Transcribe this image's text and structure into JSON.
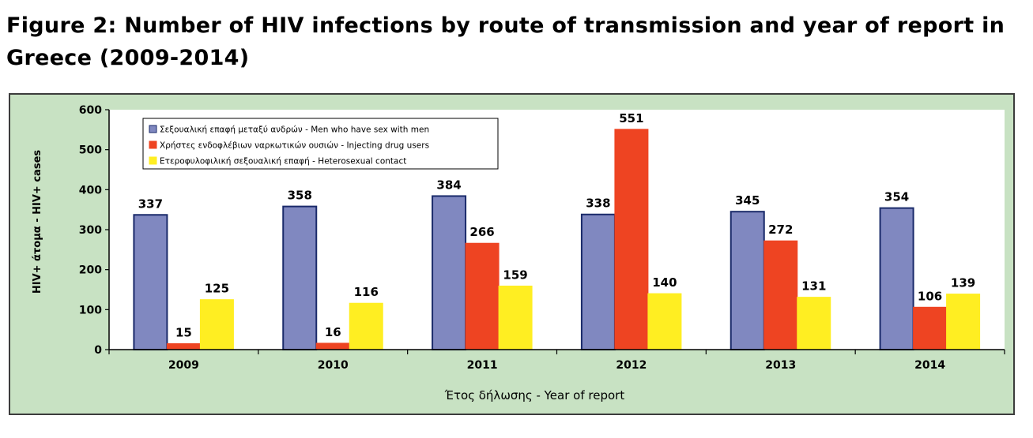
{
  "figure": {
    "title": "Figure 2: Number of HIV infections by route of transmission and year of report in Greece (2009-2014)"
  },
  "chart_data": {
    "type": "bar",
    "categories": [
      "2009",
      "2010",
      "2011",
      "2012",
      "2013",
      "2014"
    ],
    "series": [
      {
        "name": "Σεξουαλική επαφή μεταξύ ανδρών - Men who have sex with men",
        "color": "#8088c0",
        "border": "#1a2a6a",
        "values": [
          337,
          358,
          384,
          338,
          345,
          354
        ]
      },
      {
        "name": "Χρήστες ενδοφλέβιων ναρκωτικών ουσιών - Injecting drug users",
        "color": "#ee4422",
        "border": "#ee4422",
        "values": [
          15,
          16,
          266,
          551,
          272,
          106
        ]
      },
      {
        "name": "Ετεροφυλοφιλική σεξουαλική επαφή - Heterosexual contact",
        "color": "#ffee22",
        "border": "#ffee22",
        "values": [
          125,
          116,
          159,
          140,
          131,
          139
        ]
      }
    ],
    "ylim": [
      0,
      600
    ],
    "yticks": [
      "0",
      "100",
      "200",
      "300",
      "400",
      "500",
      "600"
    ],
    "ylabel": "HIV+ άτομα - HIV+ cases",
    "xlabel": "Έτος δήλωσης - Year of report",
    "legend_position": "top-left",
    "grid": false,
    "plot_background": "#ffffff",
    "panel_background": "#c8e2c3"
  }
}
